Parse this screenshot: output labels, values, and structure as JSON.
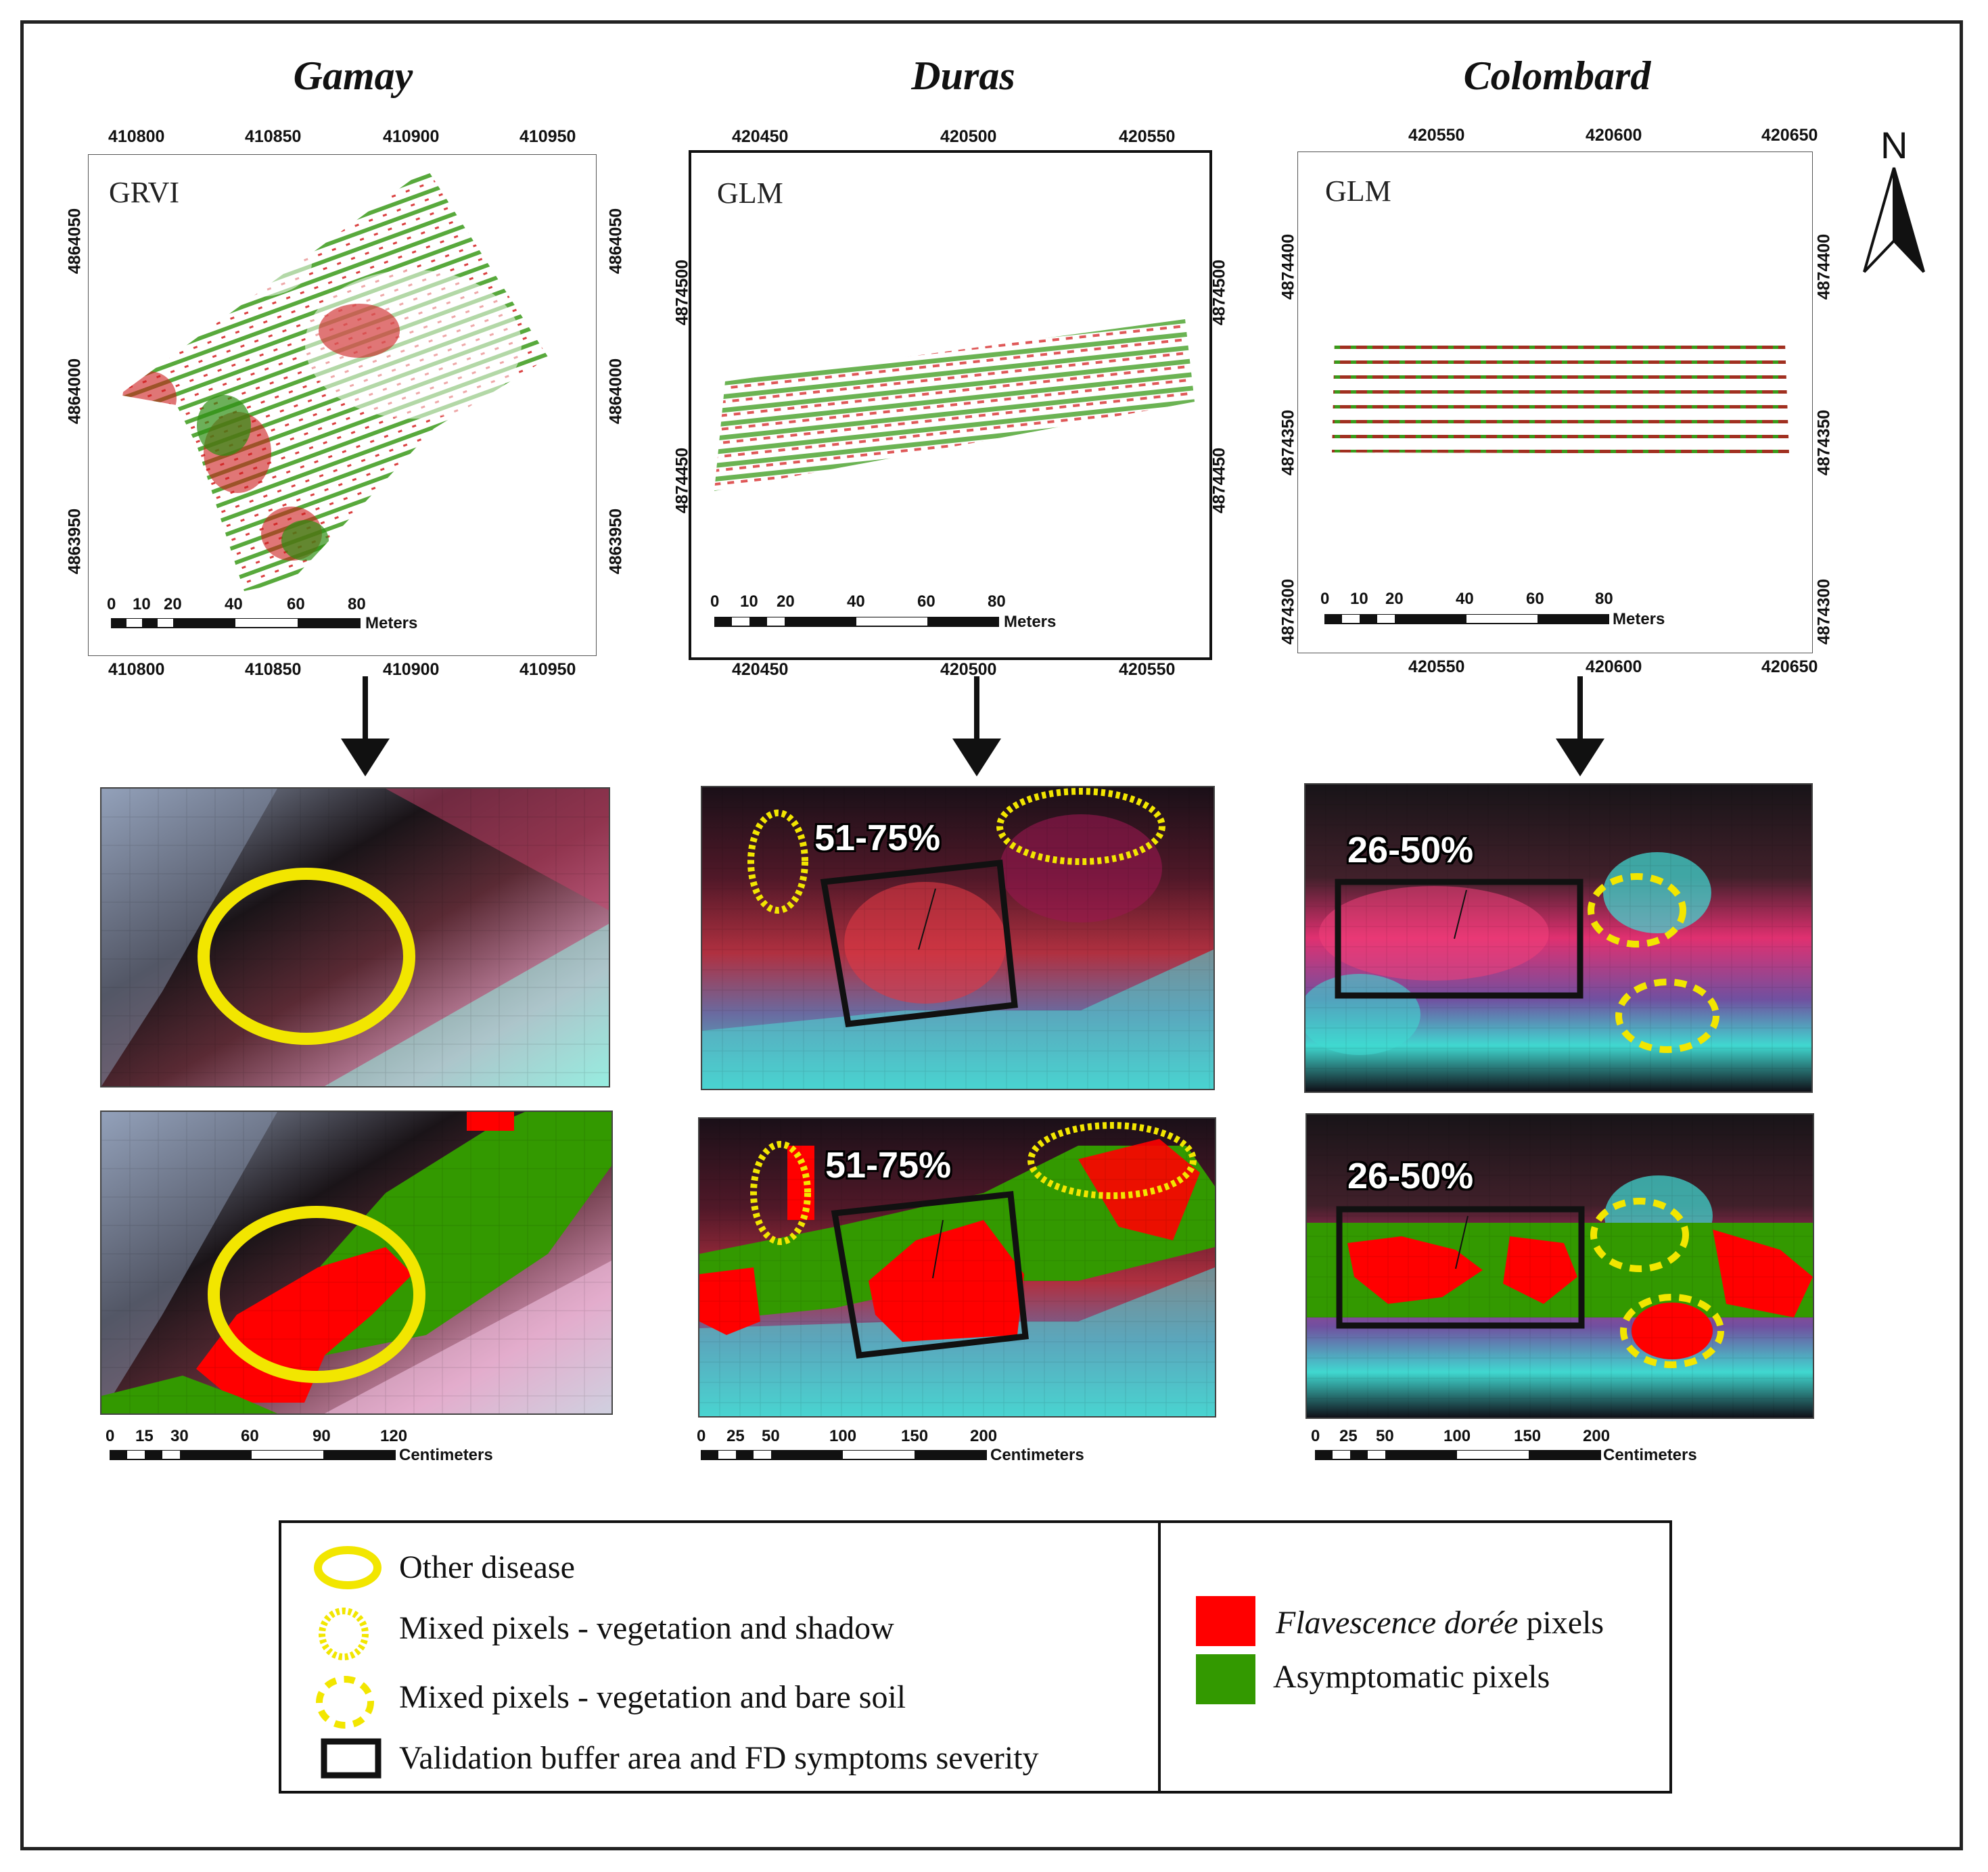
{
  "sites": [
    {
      "name": "Gamay",
      "index_label": "GRVI",
      "top_easting": [
        "410800",
        "410850",
        "410900",
        "410950"
      ],
      "bottom_easting": [
        "410800",
        "410850",
        "410900",
        "410950"
      ],
      "northing": [
        "4864050",
        "4864000",
        "4863950"
      ],
      "map_scale_ticks": [
        "0",
        "10",
        "20",
        "40",
        "60",
        "80"
      ],
      "map_scale_unit": "Meters",
      "zoom_scale_ticks": [
        "0",
        "15",
        "30",
        "60",
        "90",
        "120"
      ],
      "zoom_scale_unit": "Centimeters",
      "severity": ""
    },
    {
      "name": "Duras",
      "index_label": "GLM",
      "top_easting": [
        "420450",
        "420500",
        "420550"
      ],
      "bottom_easting": [
        "420450",
        "420500",
        "420550"
      ],
      "northing": [
        "4874500",
        "4874450"
      ],
      "map_scale_ticks": [
        "0",
        "10",
        "20",
        "40",
        "60",
        "80"
      ],
      "map_scale_unit": "Meters",
      "zoom_scale_ticks": [
        "0",
        "25",
        "50",
        "100",
        "150",
        "200"
      ],
      "zoom_scale_unit": "Centimeters",
      "severity": "51-75%"
    },
    {
      "name": "Colombard",
      "index_label": "GLM",
      "top_easting": [
        "420550",
        "420600",
        "420650"
      ],
      "bottom_easting": [
        "420550",
        "420600",
        "420650"
      ],
      "northing": [
        "4874400",
        "4874350",
        "4874300"
      ],
      "map_scale_ticks": [
        "0",
        "10",
        "20",
        "40",
        "60",
        "80"
      ],
      "map_scale_unit": "Meters",
      "zoom_scale_ticks": [
        "0",
        "25",
        "50",
        "100",
        "150",
        "200"
      ],
      "zoom_scale_unit": "Centimeters",
      "severity": "26-50%"
    }
  ],
  "north_arrow": "N",
  "legend": {
    "other_disease": "Other  disease",
    "mixed_shadow": "Mixed pixels - vegetation and shadow",
    "mixed_soil": "Mixed pixels - vegetation and bare soil",
    "validation": "Validation buffer area and FD symptoms severity",
    "fd_italic": "Flavescence dorée",
    "fd_suffix": " pixels",
    "asymptomatic": "Asymptomatic pixels"
  },
  "colors": {
    "fd_red": "#ff0000",
    "asymptomatic_green": "#339900",
    "ellipse_yellow": "#f2e600",
    "box_black": "#111111"
  }
}
